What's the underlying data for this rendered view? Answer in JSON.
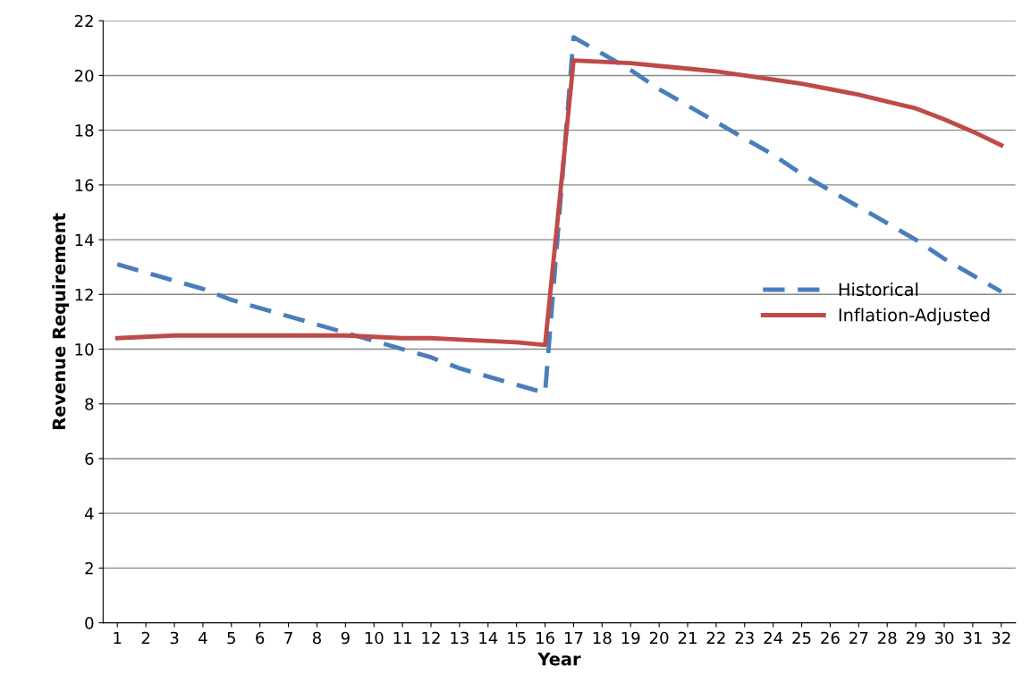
{
  "chart_data": {
    "type": "line",
    "xlabel": "Year",
    "ylabel": "Revenue Requirement",
    "categories": [
      "1",
      "2",
      "3",
      "4",
      "5",
      "6",
      "7",
      "8",
      "9",
      "10",
      "11",
      "12",
      "13",
      "14",
      "15",
      "16",
      "17",
      "18",
      "19",
      "20",
      "21",
      "22",
      "23",
      "24",
      "25",
      "26",
      "27",
      "28",
      "29",
      "30",
      "31",
      "32"
    ],
    "series": [
      {
        "name": "Historical",
        "color": "#4a7ebb",
        "line_style": "dashed",
        "values": [
          13.1,
          12.8,
          12.5,
          12.2,
          11.8,
          11.5,
          11.2,
          10.9,
          10.6,
          10.3,
          10.0,
          9.7,
          9.3,
          9.0,
          8.7,
          8.4,
          21.4,
          20.8,
          20.2,
          19.5,
          18.9,
          18.3,
          17.7,
          17.1,
          16.4,
          15.8,
          15.2,
          14.6,
          14.0,
          13.3,
          12.7,
          12.1
        ]
      },
      {
        "name": "Inflation-Adjusted",
        "color": "#be4b48",
        "line_style": "solid",
        "values": [
          10.4,
          10.45,
          10.5,
          10.5,
          10.5,
          10.5,
          10.5,
          10.5,
          10.5,
          10.45,
          10.4,
          10.4,
          10.35,
          10.3,
          10.25,
          10.15,
          20.55,
          20.5,
          20.45,
          20.35,
          20.25,
          20.15,
          20.0,
          19.85,
          19.7,
          19.5,
          19.3,
          19.05,
          18.8,
          18.4,
          17.95,
          17.45
        ]
      }
    ],
    "ylim": [
      0,
      22
    ],
    "yticks": [
      0,
      2,
      4,
      6,
      8,
      10,
      12,
      14,
      16,
      18,
      20,
      22
    ],
    "grid": "y",
    "legend": "right",
    "marker": "none"
  }
}
